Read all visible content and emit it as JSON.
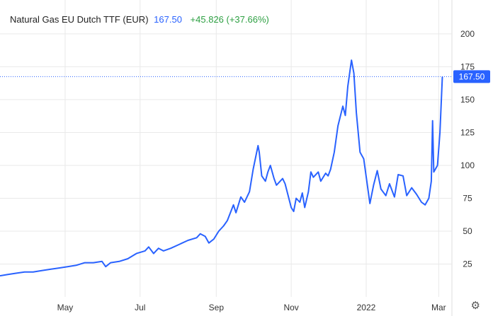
{
  "header": {
    "symbol": "Natural Gas EU Dutch TTF (EUR)",
    "price": "167.50",
    "change": "+45.826 (+37.66%)"
  },
  "colors": {
    "line": "#2962ff",
    "grid": "#e9e9e9",
    "change_positive": "#2ea043",
    "label_bg": "#2962ff"
  },
  "icons": {
    "settings": "gear-icon"
  },
  "chart_data": {
    "type": "line",
    "title": "Natural Gas EU Dutch TTF (EUR)",
    "last_value": 167.5,
    "last_label": "167.50",
    "y_ticks": [
      25,
      50,
      75,
      100,
      125,
      150,
      175,
      200
    ],
    "y_tick_labels": [
      "25",
      "50",
      "75",
      "100",
      "125",
      "150",
      "175",
      "200"
    ],
    "ylim": [
      0,
      215
    ],
    "x_ticks": [
      {
        "label": "May",
        "date": "2021-05-01"
      },
      {
        "label": "Jul",
        "date": "2021-07-01"
      },
      {
        "label": "Sep",
        "date": "2021-09-01"
      },
      {
        "label": "Nov",
        "date": "2021-11-01"
      },
      {
        "label": "2022",
        "date": "2022-01-01"
      },
      {
        "label": "Mar",
        "date": "2022-03-01"
      }
    ],
    "xlim": [
      "2021-03-09",
      "2022-03-06"
    ],
    "grid": true,
    "series": [
      {
        "values": [
          [
            "2021-03-09",
            16
          ],
          [
            "2021-03-15",
            17
          ],
          [
            "2021-03-22",
            18
          ],
          [
            "2021-03-29",
            19
          ],
          [
            "2021-04-05",
            19
          ],
          [
            "2021-04-12",
            20
          ],
          [
            "2021-04-19",
            21
          ],
          [
            "2021-04-26",
            22
          ],
          [
            "2021-05-03",
            23
          ],
          [
            "2021-05-10",
            24
          ],
          [
            "2021-05-17",
            26
          ],
          [
            "2021-05-24",
            26
          ],
          [
            "2021-05-31",
            27
          ],
          [
            "2021-06-03",
            23
          ],
          [
            "2021-06-07",
            26
          ],
          [
            "2021-06-14",
            27
          ],
          [
            "2021-06-21",
            29
          ],
          [
            "2021-06-28",
            33
          ],
          [
            "2021-07-05",
            35
          ],
          [
            "2021-07-08",
            38
          ],
          [
            "2021-07-12",
            33
          ],
          [
            "2021-07-16",
            37
          ],
          [
            "2021-07-20",
            35
          ],
          [
            "2021-07-26",
            37
          ],
          [
            "2021-08-02",
            40
          ],
          [
            "2021-08-09",
            43
          ],
          [
            "2021-08-16",
            45
          ],
          [
            "2021-08-19",
            48
          ],
          [
            "2021-08-23",
            46
          ],
          [
            "2021-08-26",
            41
          ],
          [
            "2021-08-30",
            44
          ],
          [
            "2021-09-03",
            50
          ],
          [
            "2021-09-07",
            54
          ],
          [
            "2021-09-10",
            58
          ],
          [
            "2021-09-15",
            70
          ],
          [
            "2021-09-17",
            64
          ],
          [
            "2021-09-21",
            76
          ],
          [
            "2021-09-24",
            72
          ],
          [
            "2021-09-28",
            80
          ],
          [
            "2021-10-01",
            97
          ],
          [
            "2021-10-05",
            115
          ],
          [
            "2021-10-06",
            110
          ],
          [
            "2021-10-08",
            92
          ],
          [
            "2021-10-11",
            88
          ],
          [
            "2021-10-13",
            95
          ],
          [
            "2021-10-15",
            100
          ],
          [
            "2021-10-18",
            90
          ],
          [
            "2021-10-20",
            85
          ],
          [
            "2021-10-25",
            90
          ],
          [
            "2021-10-27",
            86
          ],
          [
            "2021-11-01",
            68
          ],
          [
            "2021-11-03",
            65
          ],
          [
            "2021-11-05",
            75
          ],
          [
            "2021-11-08",
            72
          ],
          [
            "2021-11-10",
            79
          ],
          [
            "2021-11-12",
            68
          ],
          [
            "2021-11-15",
            80
          ],
          [
            "2021-11-17",
            95
          ],
          [
            "2021-11-19",
            91
          ],
          [
            "2021-11-23",
            95
          ],
          [
            "2021-11-25",
            88
          ],
          [
            "2021-11-29",
            94
          ],
          [
            "2021-12-01",
            92
          ],
          [
            "2021-12-03",
            97
          ],
          [
            "2021-12-06",
            110
          ],
          [
            "2021-12-09",
            130
          ],
          [
            "2021-12-13",
            145
          ],
          [
            "2021-12-15",
            138
          ],
          [
            "2021-12-17",
            160
          ],
          [
            "2021-12-20",
            180
          ],
          [
            "2021-12-22",
            170
          ],
          [
            "2021-12-24",
            140
          ],
          [
            "2021-12-27",
            110
          ],
          [
            "2021-12-30",
            105
          ],
          [
            "2022-01-04",
            71
          ],
          [
            "2022-01-07",
            85
          ],
          [
            "2022-01-10",
            96
          ],
          [
            "2022-01-13",
            82
          ],
          [
            "2022-01-17",
            77
          ],
          [
            "2022-01-20",
            86
          ],
          [
            "2022-01-24",
            76
          ],
          [
            "2022-01-27",
            93
          ],
          [
            "2022-01-31",
            92
          ],
          [
            "2022-02-03",
            77
          ],
          [
            "2022-02-07",
            83
          ],
          [
            "2022-02-11",
            78
          ],
          [
            "2022-02-15",
            72
          ],
          [
            "2022-02-18",
            70
          ],
          [
            "2022-02-21",
            75
          ],
          [
            "2022-02-23",
            88
          ],
          [
            "2022-02-24",
            134
          ],
          [
            "2022-02-25",
            95
          ],
          [
            "2022-02-28",
            100
          ],
          [
            "2022-03-02",
            125
          ],
          [
            "2022-03-04",
            167.5
          ]
        ]
      }
    ]
  }
}
